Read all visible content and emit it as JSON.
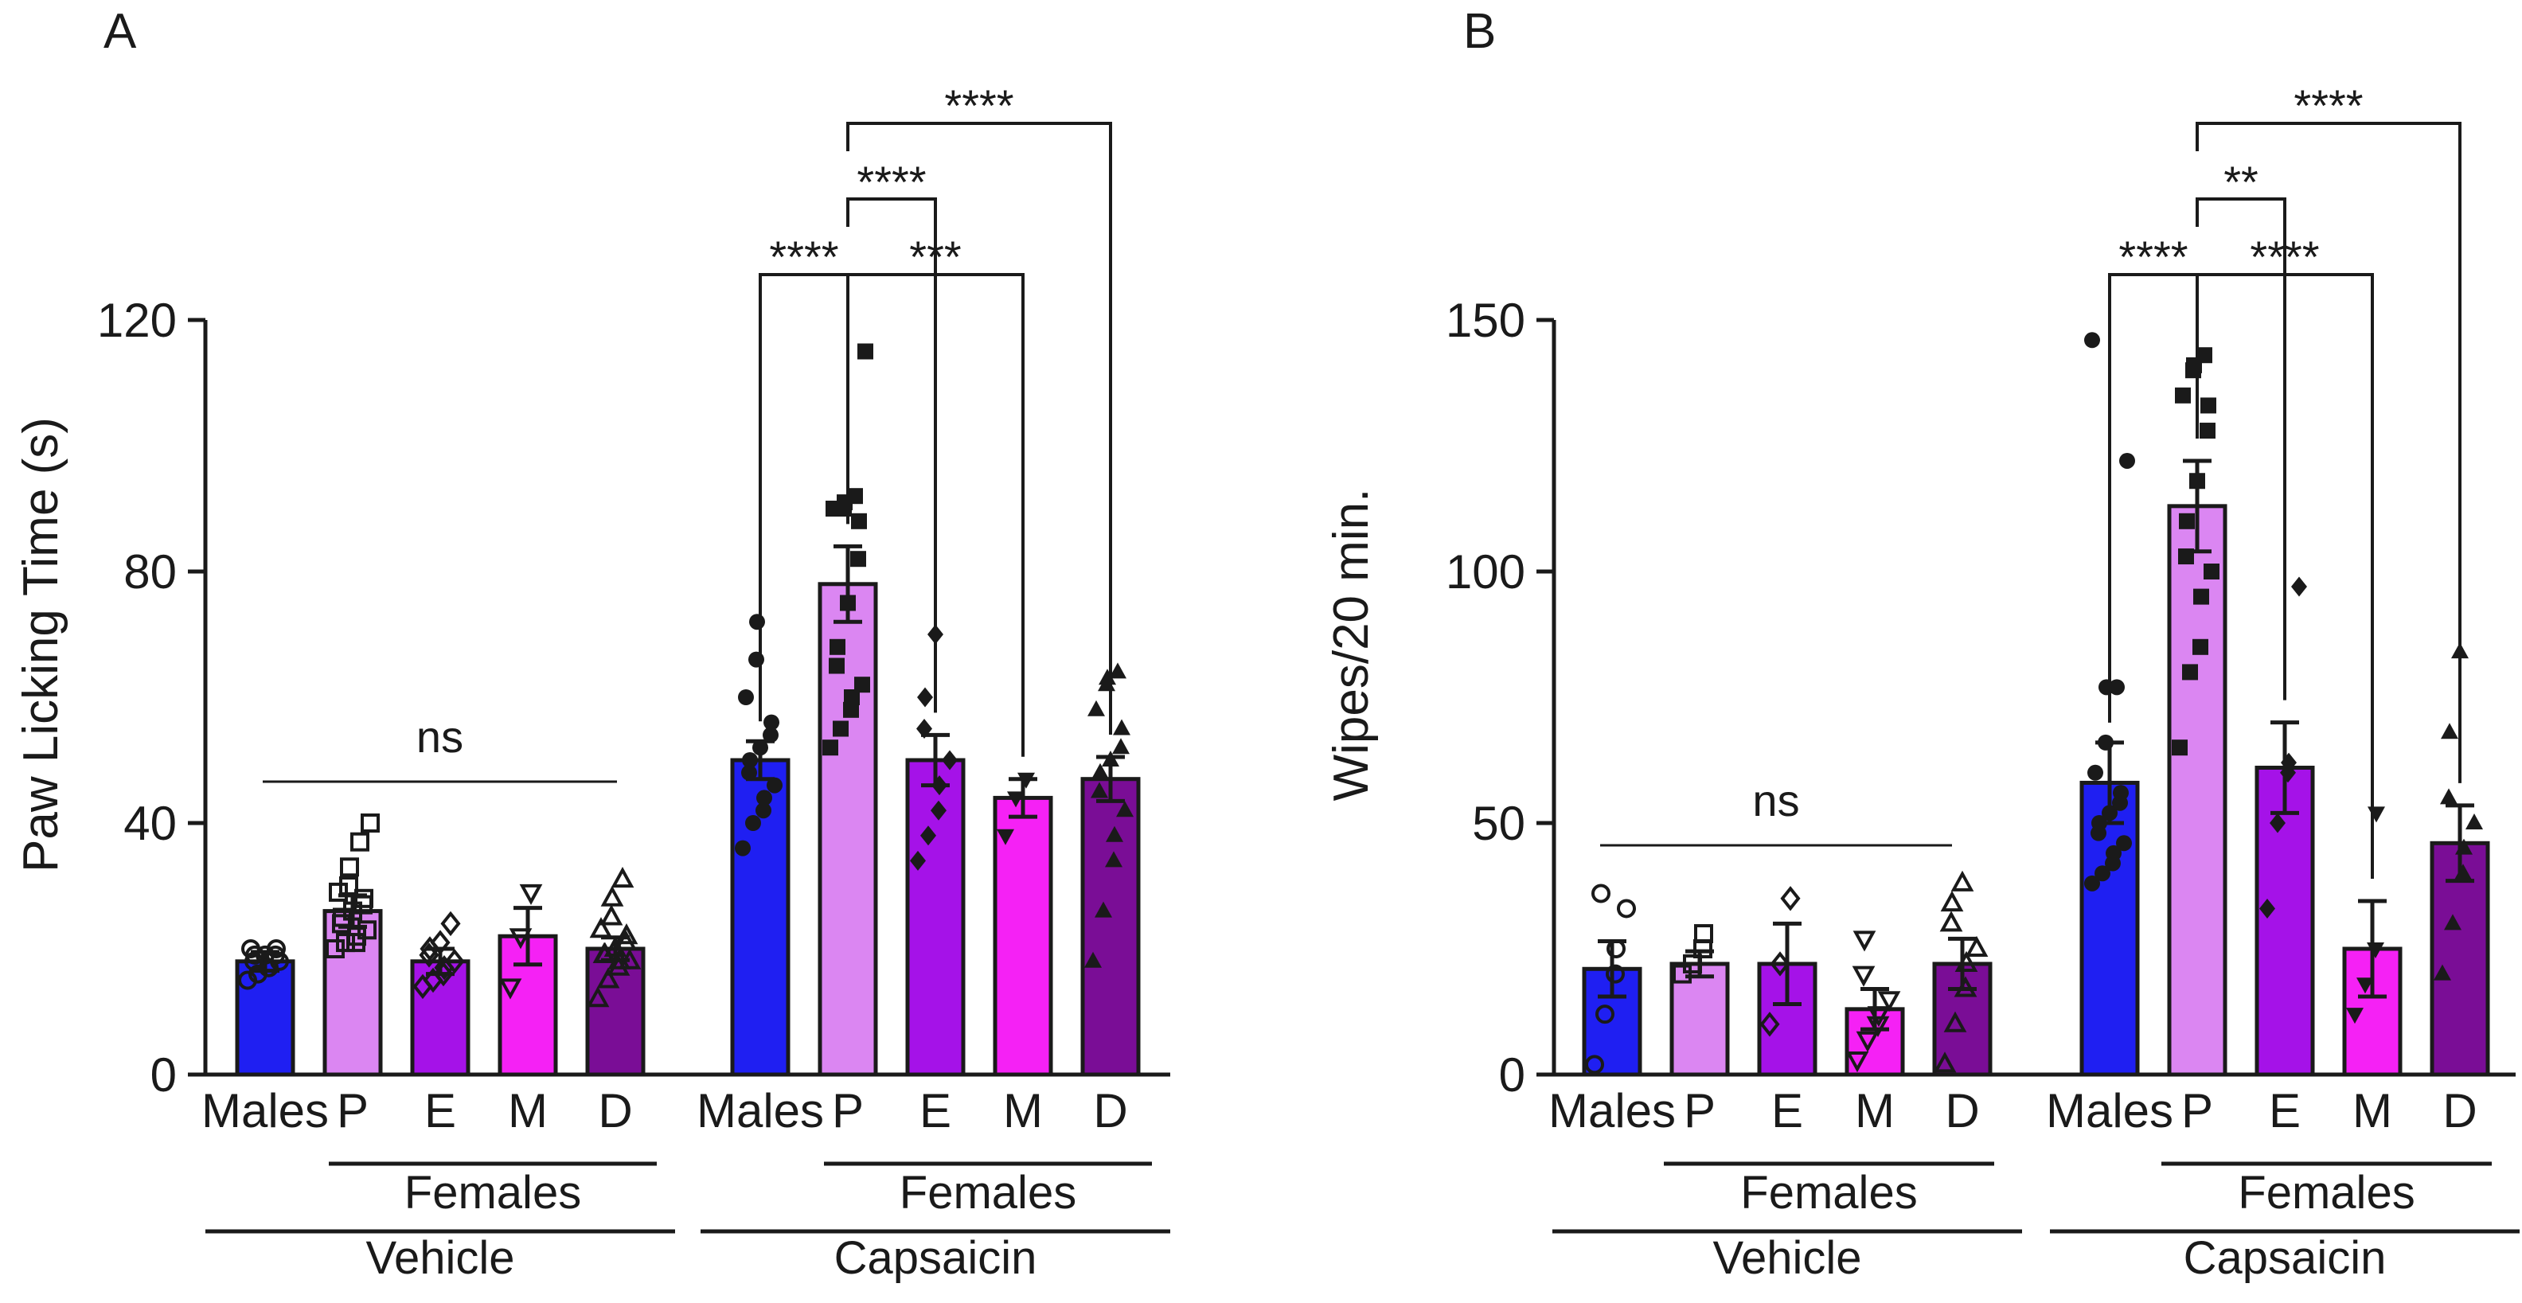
{
  "chart_data": [
    {
      "type": "bar",
      "panel_label": "A",
      "ylabel": "Paw Licking Time (s)",
      "ylim": [
        0,
        120
      ],
      "yticks": [
        "0",
        "40",
        "80",
        "120"
      ],
      "groups": [
        {
          "name": "Vehicle",
          "subgroup_label": "Females",
          "categories": [
            "Males",
            "P",
            "E",
            "M",
            "D"
          ],
          "colors": [
            "#1f1ff2",
            "#db86f2",
            "#a512e8",
            "#f521f5",
            "#7a0d96"
          ],
          "markers": [
            "circle-open",
            "square-open",
            "diamond-open",
            "triangle-down-open",
            "triangle-up-open"
          ],
          "means": [
            18,
            26,
            18,
            22,
            20
          ],
          "sems": [
            1.5,
            2.5,
            2,
            4.5,
            1.8
          ],
          "points": [
            [
              15,
              16,
              17,
              17,
              18,
              18,
              19,
              19,
              19,
              20,
              20
            ],
            [
              20,
              21,
              21,
              22,
              23,
              24,
              25,
              26,
              27,
              28,
              29,
              30,
              33,
              37,
              40
            ],
            [
              14,
              15,
              16,
              17,
              18,
              19,
              20,
              21,
              24
            ],
            [
              14,
              22,
              29
            ],
            [
              12,
              15,
              17,
              18,
              18,
              19,
              19,
              20,
              21,
              22,
              23,
              25,
              28,
              31
            ]
          ],
          "comparison": {
            "label": "ns"
          }
        },
        {
          "name": "Capsaicin",
          "subgroup_label": "Females",
          "categories": [
            "Males",
            "P",
            "E",
            "M",
            "D"
          ],
          "colors": [
            "#1f1ff2",
            "#db86f2",
            "#a512e8",
            "#f521f5",
            "#7a0d96"
          ],
          "markers": [
            "circle",
            "square",
            "diamond",
            "triangle-down",
            "triangle-up"
          ],
          "means": [
            50,
            78,
            50,
            44,
            47
          ],
          "sems": [
            3,
            6,
            4,
            3,
            3.5
          ],
          "points": [
            [
              36,
              40,
              42,
              44,
              46,
              48,
              50,
              52,
              54,
              56,
              60,
              66,
              72
            ],
            [
              52,
              55,
              58,
              60,
              62,
              65,
              68,
              75,
              82,
              88,
              90,
              90,
              91,
              92,
              115
            ],
            [
              34,
              38,
              42,
              46,
              50,
              55,
              60,
              70
            ],
            [
              38,
              44,
              47
            ],
            [
              18,
              26,
              34,
              38,
              42,
              45,
              48,
              50,
              52,
              55,
              58,
              62,
              63,
              64
            ]
          ],
          "comparisons": [
            {
              "from": "Males",
              "to": "P",
              "label": "****"
            },
            {
              "from": "P",
              "to": "E",
              "label": "****"
            },
            {
              "from": "P",
              "to": "M",
              "label": "***"
            },
            {
              "from": "P",
              "to": "D",
              "label": "****"
            }
          ]
        }
      ]
    },
    {
      "type": "bar",
      "panel_label": "B",
      "ylabel": "Wipes/20 min.",
      "ylim": [
        0,
        150
      ],
      "yticks": [
        "0",
        "50",
        "100",
        "150"
      ],
      "groups": [
        {
          "name": "Vehicle",
          "subgroup_label": "Females",
          "categories": [
            "Males",
            "P",
            "E",
            "M",
            "D"
          ],
          "colors": [
            "#1f1ff2",
            "#db86f2",
            "#a512e8",
            "#f521f5",
            "#7a0d96"
          ],
          "markers": [
            "circle-open",
            "square-open",
            "diamond-open",
            "triangle-down-open",
            "triangle-up-open"
          ],
          "means": [
            21,
            22,
            22,
            13,
            22
          ],
          "sems": [
            5.5,
            2.5,
            8,
            4,
            5
          ],
          "points": [
            [
              2,
              12,
              20,
              25,
              33,
              36
            ],
            [
              20,
              22,
              25,
              28
            ],
            [
              10,
              22,
              35
            ],
            [
              3,
              7,
              10,
              12,
              15,
              20,
              27
            ],
            [
              2,
              10,
              17,
              22,
              25,
              30,
              34,
              38
            ]
          ],
          "comparison": {
            "label": "ns"
          }
        },
        {
          "name": "Capsaicin",
          "subgroup_label": "Females",
          "categories": [
            "Males",
            "P",
            "E",
            "M",
            "D"
          ],
          "colors": [
            "#1f1ff2",
            "#db86f2",
            "#a512e8",
            "#f521f5",
            "#7a0d96"
          ],
          "markers": [
            "circle",
            "square",
            "diamond",
            "triangle-down",
            "triangle-up"
          ],
          "means": [
            58,
            113,
            61,
            25,
            46
          ],
          "sems": [
            8,
            9,
            9,
            9.5,
            7.5
          ],
          "points": [
            [
              38,
              40,
              42,
              44,
              46,
              48,
              50,
              52,
              54,
              56,
              60,
              66,
              77,
              77,
              122,
              146
            ],
            [
              65,
              80,
              85,
              95,
              100,
              103,
              110,
              118,
              128,
              133,
              135,
              140,
              141,
              143
            ],
            [
              33,
              50,
              60,
              62,
              97
            ],
            [
              12,
              18,
              25,
              52
            ],
            [
              20,
              30,
              40,
              45,
              50,
              55,
              68,
              84
            ]
          ],
          "comparisons": [
            {
              "from": "Males",
              "to": "P",
              "label": "****"
            },
            {
              "from": "P",
              "to": "E",
              "label": "**"
            },
            {
              "from": "P",
              "to": "M",
              "label": "****"
            },
            {
              "from": "P",
              "to": "D",
              "label": "****"
            }
          ]
        }
      ]
    }
  ]
}
